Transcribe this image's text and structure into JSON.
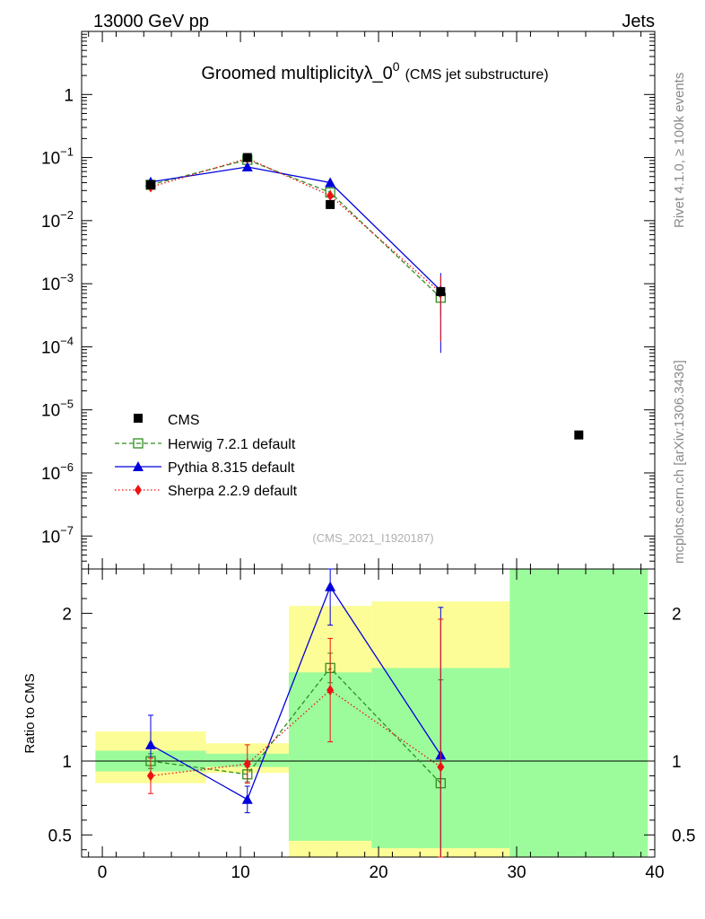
{
  "header": {
    "left": "13000 GeV pp",
    "right": "Jets"
  },
  "side_labels": {
    "top": "Rivet 4.1.0, ≥ 100k events",
    "bottom": "mcplots.cern.ch [arXiv:1306.3436]"
  },
  "chart_data": {
    "type": "line",
    "title": "Groomed multiplicityλ_0",
    "title_sup": "0",
    "title_suffix": "(CMS jet substructure)",
    "analysis_label": "(CMS_2021_I1920187)",
    "xlabel": "",
    "ylabel_ratio": "Ratio to CMS",
    "x_ticks": [
      "0",
      "10",
      "20",
      "30",
      "40"
    ],
    "x_tick_values": [
      0,
      10,
      20,
      30,
      40
    ],
    "xlim": [
      -1.5,
      40
    ],
    "ylim_main": [
      3e-08,
      10
    ],
    "ylim_ratio": [
      0.35,
      2.3
    ],
    "main_y_ticks": [
      {
        "value": 1,
        "base": "1",
        "exp": ""
      },
      {
        "value": 0.1,
        "base": "10",
        "exp": "−1"
      },
      {
        "value": 0.01,
        "base": "10",
        "exp": "−2"
      },
      {
        "value": 0.001,
        "base": "10",
        "exp": "−3"
      },
      {
        "value": 0.0001,
        "base": "10",
        "exp": "−4"
      },
      {
        "value": 1e-05,
        "base": "10",
        "exp": "−5"
      },
      {
        "value": 1e-06,
        "base": "10",
        "exp": "−6"
      },
      {
        "value": 1e-07,
        "base": "10",
        "exp": "−7"
      }
    ],
    "ratio_y_ticks": [
      {
        "value": 2,
        "label": "2"
      },
      {
        "value": 1,
        "label": "1"
      },
      {
        "value": 0.5,
        "label": "0.5"
      }
    ],
    "data": {
      "name": "CMS",
      "x": [
        3.5,
        10.5,
        16.5,
        24.5,
        34.5
      ],
      "y": [
        0.037,
        0.1,
        0.018,
        0.00075,
        4e-06
      ],
      "bins": [
        [
          -0.5,
          7.5
        ],
        [
          7.5,
          13.5
        ],
        [
          13.5,
          19.5
        ],
        [
          19.5,
          29.5
        ],
        [
          29.5,
          39.5
        ]
      ],
      "band_inner": [
        [
          0.93,
          1.07
        ],
        [
          0.96,
          1.05
        ],
        [
          0.46,
          1.6
        ],
        [
          0.41,
          1.63
        ],
        [
          0.35,
          2.3
        ]
      ],
      "band_outer": [
        [
          0.85,
          1.2
        ],
        [
          0.92,
          1.12
        ],
        [
          0.35,
          2.05
        ],
        [
          0.35,
          2.08
        ],
        [
          0.35,
          2.3
        ]
      ]
    },
    "series": [
      {
        "name": "Herwig 7.2.1 default",
        "color": "#2f8f1f",
        "x": [
          3.5,
          10.5,
          16.5,
          24.5
        ],
        "y": [
          0.037,
          0.092,
          0.028,
          0.0006
        ],
        "yerr": [
          0.004,
          0.005,
          0.003,
          0.0003
        ],
        "ratio": [
          1.0,
          0.91,
          1.63,
          0.85
        ],
        "ratio_err": [
          0.05,
          0.05,
          0.1,
          0.7
        ]
      },
      {
        "name": "Pythia 8.315 default",
        "color": "#0000dd",
        "x": [
          3.5,
          10.5,
          16.5,
          24.5
        ],
        "y": [
          0.041,
          0.071,
          0.04,
          0.00078
        ],
        "yerr": [
          0.004,
          0.004,
          0.006,
          0.0007
        ],
        "ratio": [
          1.11,
          0.74,
          2.18,
          1.04
        ],
        "ratio_err": [
          0.2,
          0.09,
          0.26,
          1.0
        ]
      },
      {
        "name": "Sherpa 2.2.9 default",
        "color": "#ee1111",
        "x": [
          3.5,
          10.5,
          16.5,
          24.5
        ],
        "y": [
          0.034,
          0.097,
          0.025,
          0.00072
        ],
        "yerr": [
          0.004,
          0.005,
          0.005,
          0.0006
        ],
        "ratio": [
          0.9,
          0.98,
          1.48,
          0.96
        ],
        "ratio_err": [
          0.12,
          0.13,
          0.35,
          1.0
        ]
      }
    ],
    "legend_position": "bottom-left",
    "colors": {
      "band_inner": "#9cfc9c",
      "band_outer": "#fdfd97",
      "data_marker": "#000000"
    }
  }
}
